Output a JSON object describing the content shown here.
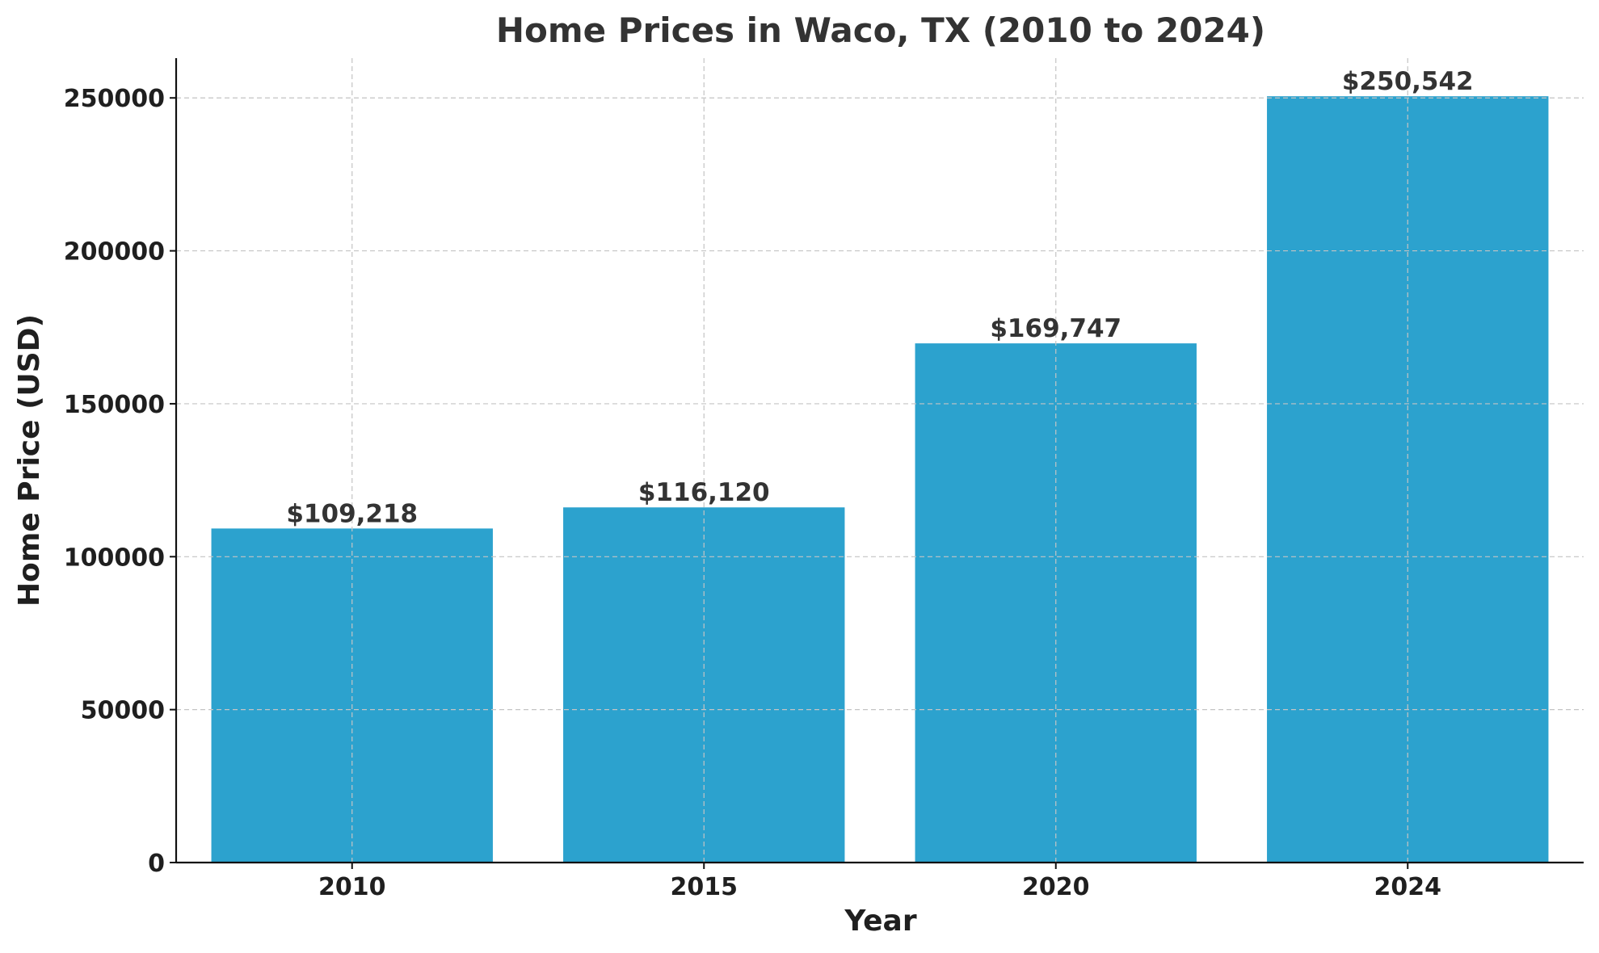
{
  "chart_data": {
    "type": "bar",
    "title": "Home Prices in Waco, TX (2010 to 2024)",
    "xlabel": "Year",
    "ylabel": "Home Price (USD)",
    "categories": [
      "2010",
      "2015",
      "2020",
      "2024"
    ],
    "values": [
      109218,
      116120,
      169747,
      250542
    ],
    "data_labels": [
      "$109,218",
      "$116,120",
      "$169,747",
      "$250,542"
    ],
    "ylim": [
      0,
      263000
    ],
    "yticks": [
      0,
      50000,
      100000,
      150000,
      200000,
      250000
    ],
    "ytick_labels": [
      "0",
      "50000",
      "100000",
      "150000",
      "200000",
      "250000"
    ],
    "grid": true,
    "bar_color": "#2ca2ce"
  }
}
